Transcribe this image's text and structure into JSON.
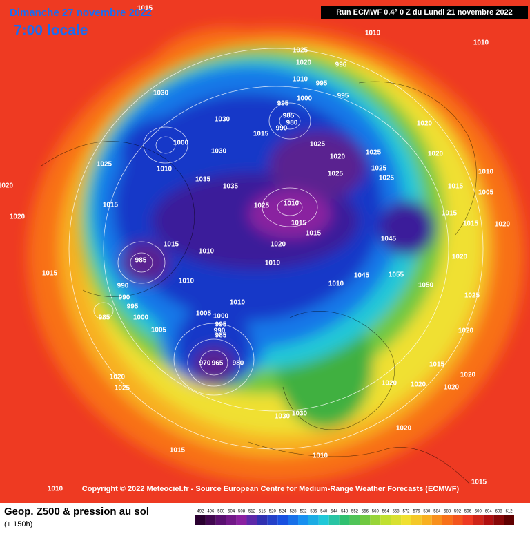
{
  "header": {
    "date": "Dimanche 27 novembre 2022",
    "time": "7:00 locale",
    "run": "Run ECMWF 0.4° 0 Z du Lundi 21 novembre 2022"
  },
  "copyright": "Copyright © 2022 Meteociel.fr - Source European Centre for Medium-Range Weather Forecasts (ECMWF)",
  "legend": {
    "title": "Geop. Z500 & pression au sol",
    "subtitle": "(+ 150h)",
    "scale": [
      492,
      496,
      500,
      504,
      508,
      512,
      516,
      520,
      524,
      528,
      532,
      536,
      540,
      544,
      548,
      552,
      556,
      560,
      564,
      568,
      572,
      576,
      580,
      584,
      588,
      592,
      596,
      600,
      604,
      608,
      612
    ]
  },
  "isobar_labels": [
    1015,
    1010,
    1010,
    1025,
    1020,
    996,
    1010,
    995,
    995,
    1030,
    1000,
    995,
    985,
    980,
    990,
    1030,
    1015,
    1020,
    1025,
    1020,
    1025,
    1020,
    1000,
    1030,
    1025,
    1010,
    1025,
    1025,
    1025,
    1010,
    1035,
    1035,
    1015,
    1005,
    1020,
    1015,
    1025,
    1010,
    1015,
    1015,
    1020,
    1015,
    1015,
    1020,
    1045,
    1020,
    1015,
    1010,
    985,
    1010,
    1020,
    1015,
    1010,
    1055,
    1050,
    1045,
    990,
    1010,
    990,
    995,
    1010,
    1025,
    985,
    1000,
    1005,
    1000,
    995,
    990,
    985,
    1005,
    1020,
    970,
    965,
    980,
    1015,
    1020,
    1025,
    1020,
    1020,
    1020,
    1020,
    1030,
    1030,
    1020,
    1015,
    1010,
    1015,
    1010
  ]
}
